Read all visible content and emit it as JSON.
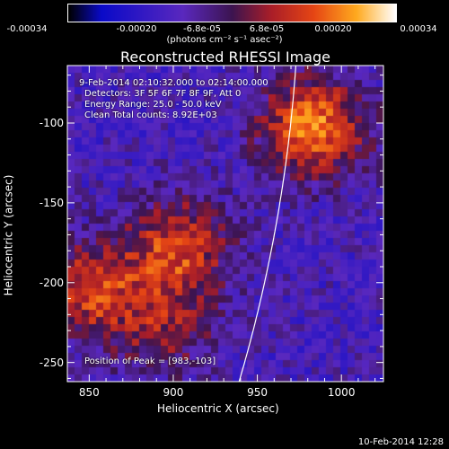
{
  "chart_data": {
    "type": "heatmap",
    "title": "Reconstructed RHESSI Image",
    "xlabel": "Heliocentric X (arcsec)",
    "ylabel": "Heliocentric Y (arcsec)",
    "xlim": [
      837,
      1025
    ],
    "ylim": [
      -262,
      -64
    ],
    "x_ticks": [
      "850",
      "900",
      "950",
      "1000"
    ],
    "y_ticks": [
      "-100",
      "-150",
      "-200",
      "-250"
    ],
    "colorbar": {
      "ticks": [
        "-0.00034",
        "-0.00020",
        "-6.8e-05",
        "6.8e-05",
        "0.00020",
        "0.00034"
      ],
      "units_line": "(photons cm⁻² s⁻¹ asec⁻²)",
      "range": [
        -0.00034,
        0.00034
      ]
    },
    "annotations": {
      "time_range": "9-Feb-2014 02:10:32.000 to 02:14:00.000",
      "detectors": "Detectors: 3F 5F 6F 7F 8F 9F, Att 0",
      "energy": "Energy Range: 25.0 - 50.0 keV",
      "clean": "Clean     Total counts: 8.92E+03",
      "peak": "Position of Peak = [983,-103]"
    },
    "sources": [
      {
        "x": 983,
        "y": -103,
        "peak": 0.00034
      },
      {
        "x": 903,
        "y": -178,
        "peak": 0.00026
      },
      {
        "x": 850,
        "y": -205,
        "peak": 0.00025
      },
      {
        "x": 895,
        "y": -228,
        "peak": 0.00016
      }
    ]
  },
  "footer": {
    "date": "10-Feb-2014 12:28"
  }
}
